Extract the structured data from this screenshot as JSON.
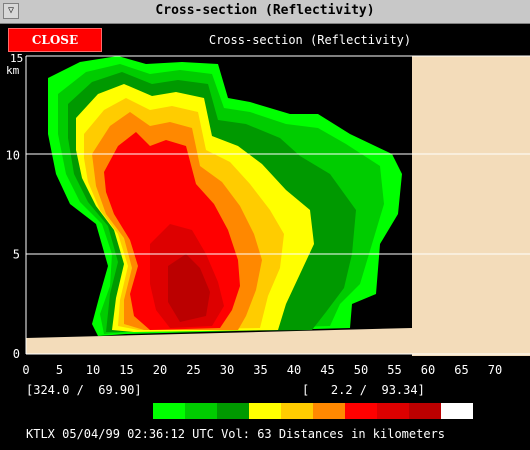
{
  "window": {
    "title": "Cross-section (Reflectivity)"
  },
  "toolbar": {
    "close_label": "CLOSE",
    "panel_title": "Cross-section (Reflectivity)"
  },
  "chart_data": {
    "type": "heatmap",
    "title": "Cross-section (Reflectivity)",
    "ylabel": "km",
    "xlabel": "",
    "xlim": [
      0,
      72
    ],
    "ylim": [
      0,
      15
    ],
    "x_ticks": [
      "0",
      "5",
      "10",
      "15",
      "20",
      "25",
      "30",
      "35",
      "40",
      "45",
      "50",
      "55",
      "60",
      "65",
      "70"
    ],
    "y_ticks": [
      "0",
      "5",
      "10"
    ],
    "y_top_label": "15",
    "gridlines_y": [
      5,
      10
    ],
    "grid": true,
    "colors_scale": [
      "#00ff00",
      "#00cc00",
      "#009900",
      "#ffff00",
      "#ffcc00",
      "#ff8800",
      "#ff0000",
      "#dd0000",
      "#bb0000",
      "#ffffff"
    ],
    "legend_position": "bottom"
  },
  "status": {
    "left_coords": "[324.0 /  69.90]",
    "right_coords": "[   2.2 /  93.34]",
    "footer": "KTLX 05/04/99 02:36:12 UTC Vol: 63 Distances in kilometers"
  },
  "colors": {
    "background": "#000000",
    "terrain": "#f3dcba",
    "close_button": "#ff0000"
  },
  "icons": {
    "window_menu": "window-menu-icon"
  }
}
